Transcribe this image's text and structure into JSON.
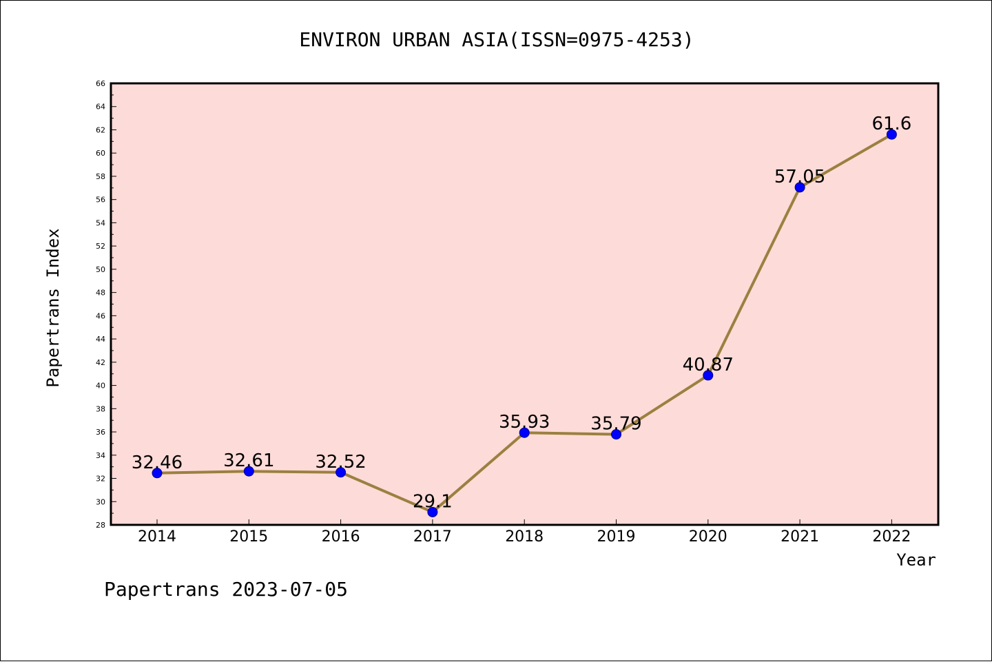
{
  "chart_data": {
    "type": "line",
    "title": "ENVIRON URBAN ASIA(ISSN=0975-4253)",
    "xlabel": "Year",
    "ylabel": "Papertrans Index",
    "categories": [
      "2014",
      "2015",
      "2016",
      "2017",
      "2018",
      "2019",
      "2020",
      "2021",
      "2022"
    ],
    "values": [
      32.46,
      32.61,
      32.52,
      29.1,
      35.93,
      35.79,
      40.87,
      57.05,
      61.6
    ],
    "data_labels": [
      "32.46",
      "32.61",
      "32.52",
      "29.1",
      "35.93",
      "35.79",
      "40.87",
      "57.05",
      "61.6"
    ],
    "ylim": [
      28,
      66
    ],
    "yticks": [
      28,
      30,
      32,
      34,
      36,
      38,
      40,
      42,
      44,
      46,
      48,
      50,
      52,
      54,
      56,
      58,
      60,
      62,
      64,
      66
    ],
    "grid": false,
    "legend": "none",
    "colors": {
      "plot_background": "#fddbd8",
      "line": "#9b8040",
      "marker": "#0000ff",
      "marker_edge": "#00008b",
      "axes": "#000000"
    }
  },
  "footer": {
    "text": "Papertrans 2023-07-05"
  }
}
